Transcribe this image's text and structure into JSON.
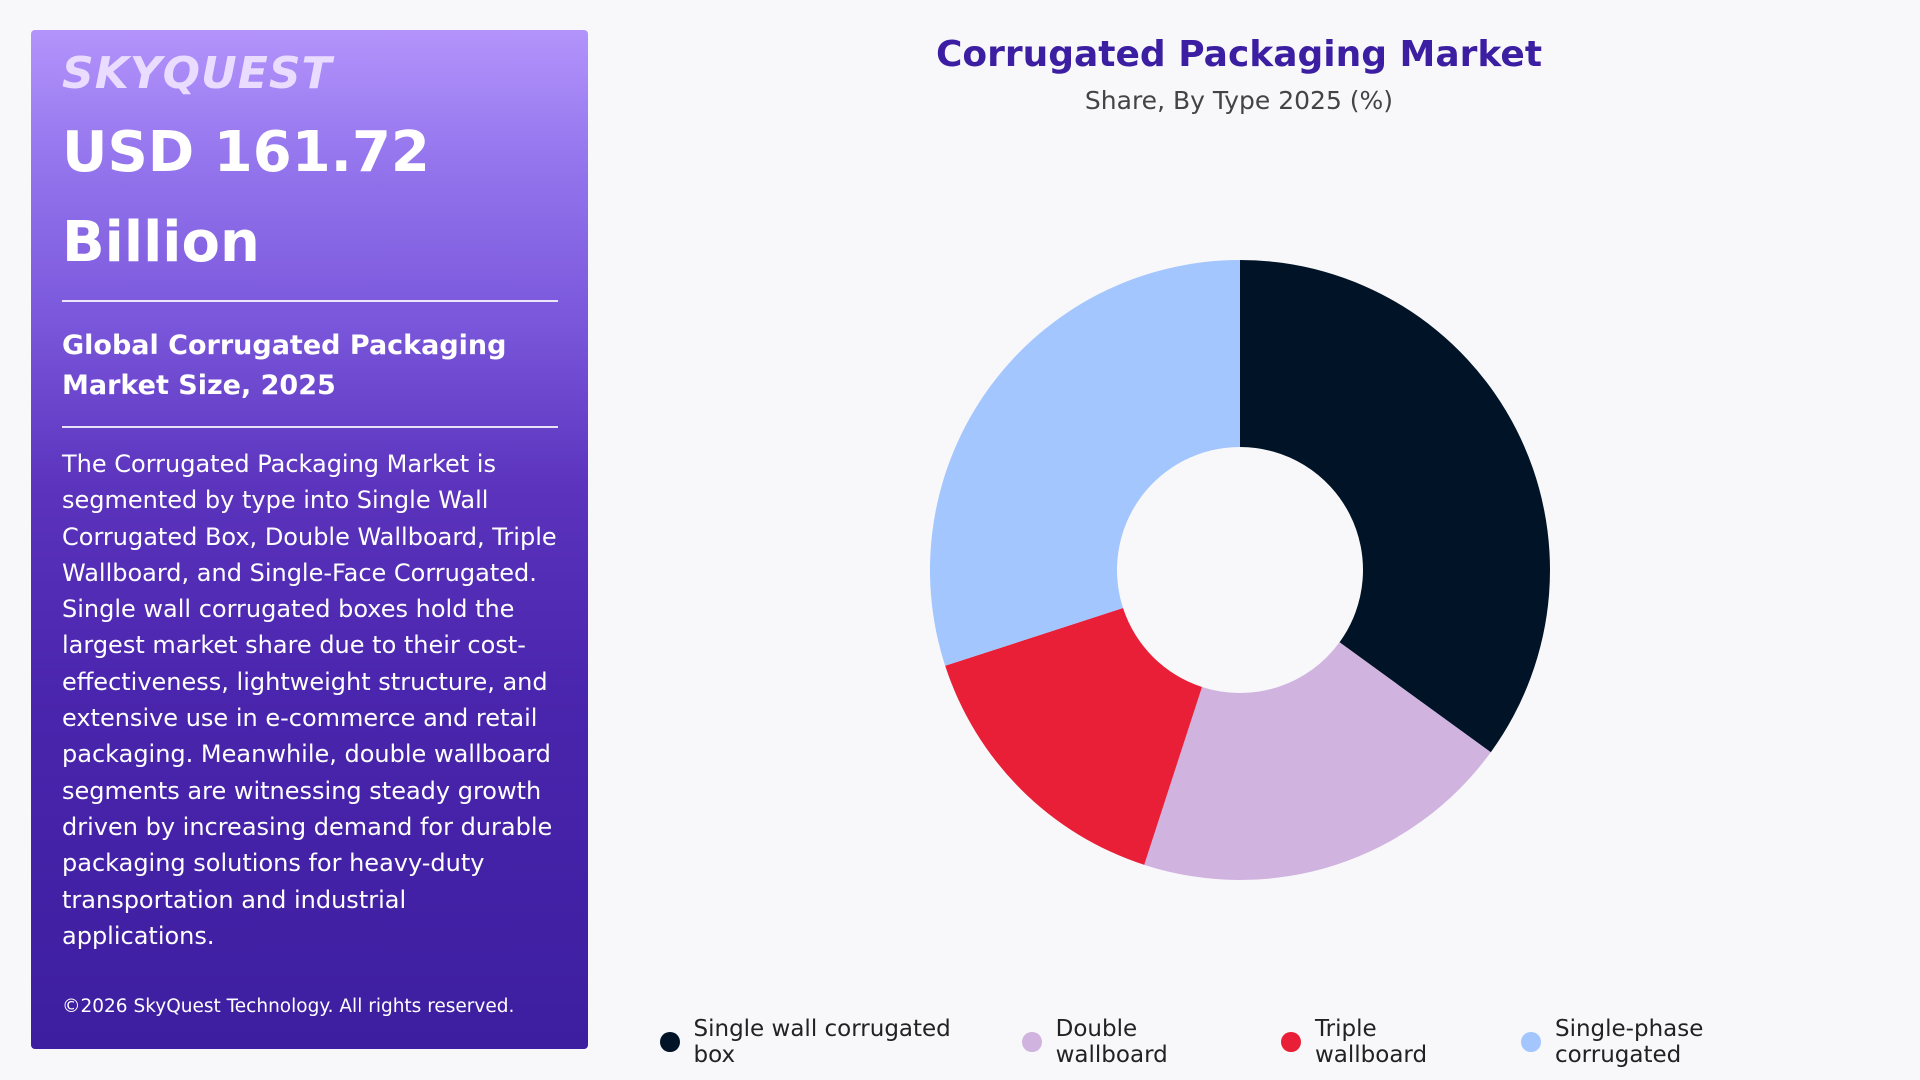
{
  "panel": {
    "brand": "SKYQUEST",
    "market_value": "USD 161.72 Billion",
    "market_subtitle": "Global Corrugated Packaging Market Size, 2025",
    "description": "The Corrugated Packaging Market is segmented by type into Single Wall Corrugated Box, Double Wallboard, Triple Wallboard, and Single-Face Corrugated. Single wall corrugated boxes hold the largest market share due to their cost-effectiveness, lightweight structure, and extensive use in e-commerce and retail packaging. Meanwhile, double wallboard segments are witnessing steady growth driven by increasing demand for durable packaging solutions for heavy-duty transportation and industrial applications.",
    "copyright": "©2026 SkyQuest Technology. All rights reserved."
  },
  "chart_data": {
    "type": "pie",
    "style": "donut",
    "title": "Corrugated Packaging Market",
    "subtitle": "Share, By Type 2025 (%)",
    "legend_position": "bottom",
    "categories": [
      "Single wall corrugated box",
      "Double wallboard",
      "Triple wallboard",
      "Single-phase corrugated"
    ],
    "values": [
      35,
      20,
      15,
      30
    ],
    "colors": [
      "#011427",
      "#d0b3df",
      "#e81f36",
      "#a3c6fe"
    ]
  }
}
